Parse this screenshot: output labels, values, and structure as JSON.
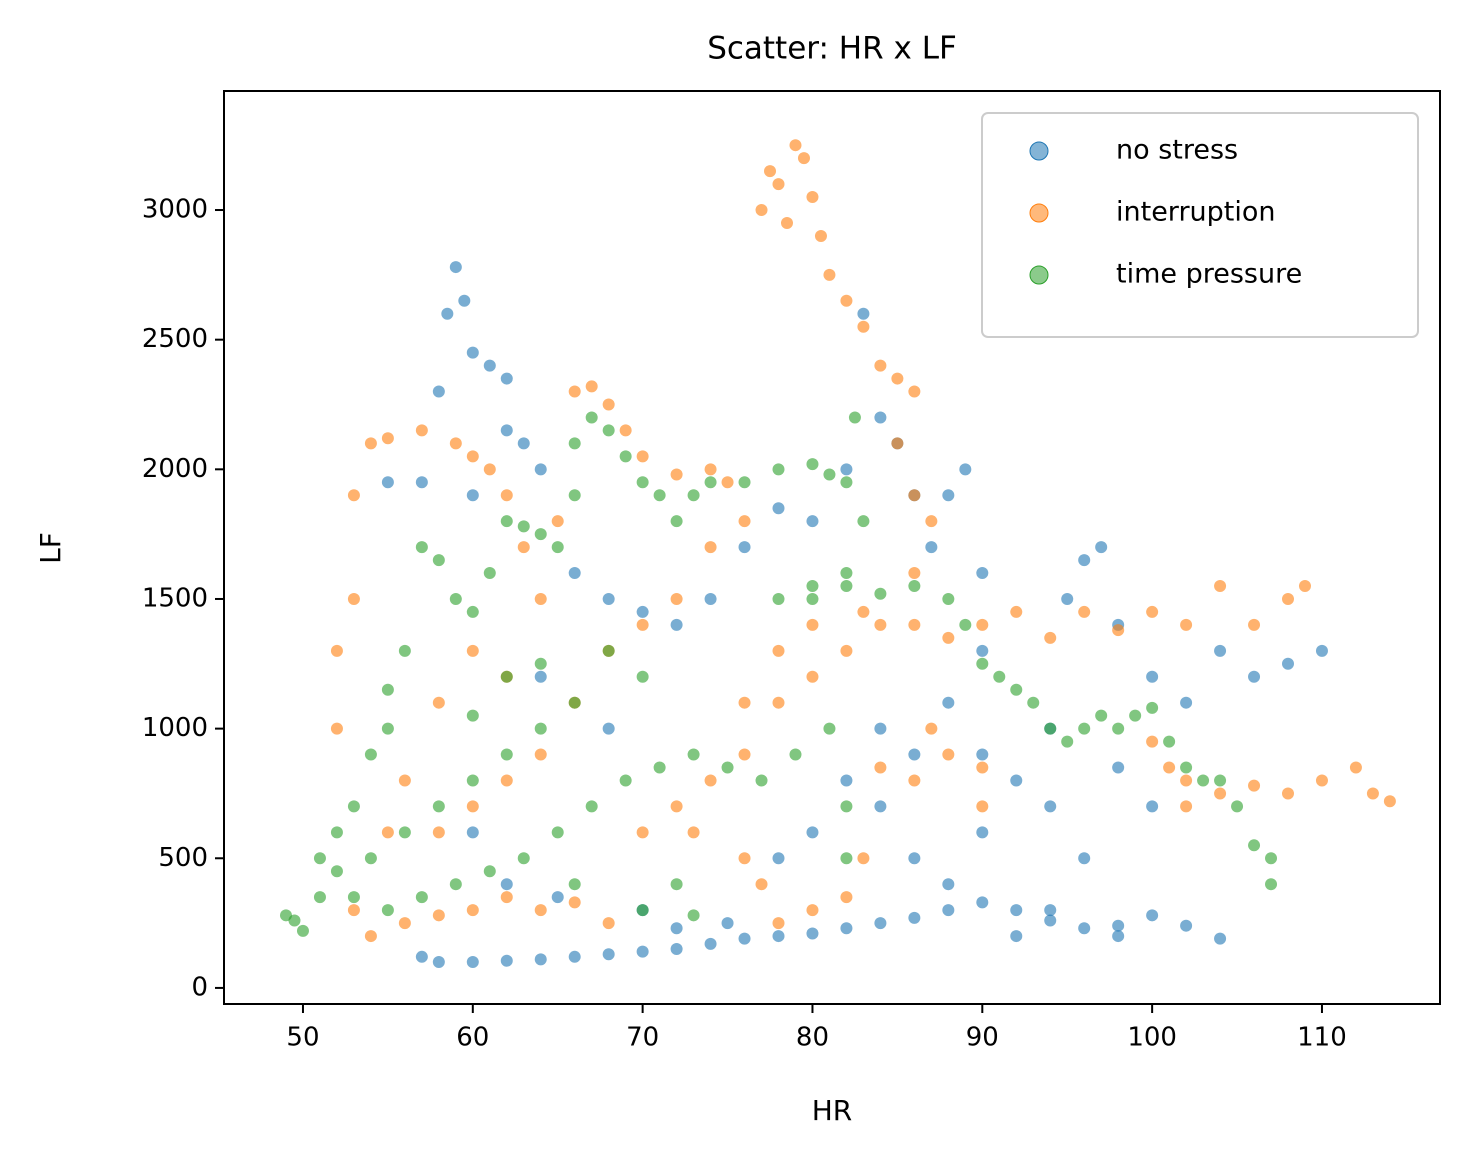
{
  "chart_data": {
    "type": "scatter",
    "title": "Scatter: HR x LF",
    "x_label": "HR",
    "y_label": "LF",
    "xlim": [
      45.35,
      116.95
    ],
    "ylim": [
      -62,
      3459
    ],
    "xticks": [
      50,
      60,
      70,
      80,
      90,
      100,
      110
    ],
    "yticks": [
      0,
      500,
      1000,
      1500,
      2000,
      2500,
      3000
    ],
    "legend": "upper right",
    "grid": false,
    "series": [
      {
        "name": "no stress",
        "color": "#1f77b4",
        "x": [
          57,
          58,
          60,
          62,
          64,
          66,
          68,
          70,
          72,
          74,
          76,
          78,
          80,
          82,
          84,
          86,
          88,
          90,
          92,
          94,
          96,
          98,
          100,
          102,
          104,
          58,
          58.5,
          59,
          59.5,
          60,
          61,
          62,
          63,
          64,
          62,
          60,
          57,
          55,
          66,
          68,
          70,
          72,
          74,
          76,
          78,
          80,
          82,
          83,
          84,
          85,
          86,
          87,
          88,
          89,
          90,
          90,
          88,
          86,
          84,
          86,
          88,
          90,
          92,
          94,
          95,
          96,
          97,
          98,
          100,
          102,
          104,
          106,
          108,
          110,
          100,
          96,
          94,
          98,
          92,
          90,
          94,
          98,
          84,
          82,
          80,
          78,
          75,
          72,
          70,
          65,
          62,
          60,
          64,
          68
        ],
        "values": [
          120,
          100,
          100,
          105,
          110,
          120,
          130,
          140,
          150,
          170,
          190,
          200,
          210,
          230,
          250,
          270,
          300,
          330,
          300,
          260,
          230,
          240,
          280,
          240,
          190,
          2300,
          2600,
          2780,
          2650,
          2450,
          2400,
          2350,
          2100,
          2000,
          2150,
          1900,
          1950,
          1950,
          1600,
          1500,
          1450,
          1400,
          1500,
          1700,
          1850,
          1800,
          2000,
          2600,
          2200,
          2100,
          1900,
          1700,
          1900,
          2000,
          1600,
          1300,
          1100,
          900,
          700,
          500,
          400,
          600,
          800,
          1000,
          1500,
          1650,
          1700,
          1400,
          1200,
          1100,
          1300,
          1200,
          1250,
          1300,
          700,
          500,
          300,
          200,
          200,
          900,
          700,
          850,
          1000,
          800,
          600,
          500,
          250,
          230,
          300,
          350,
          400,
          600,
          1200,
          1000
        ]
      },
      {
        "name": "interruption",
        "color": "#ff7f0e",
        "x": [
          77,
          77.5,
          78,
          78.5,
          79,
          79.5,
          80,
          80.5,
          81,
          82,
          83,
          84,
          85,
          86,
          85,
          86,
          87,
          86,
          84,
          82,
          80,
          78,
          76,
          74,
          76,
          78,
          80,
          83,
          86,
          88,
          90,
          92,
          94,
          96,
          98,
          100,
          102,
          104,
          106,
          108,
          109,
          100,
          101,
          102,
          104,
          106,
          108,
          110,
          112,
          113,
          114,
          102,
          90,
          88,
          86,
          84,
          87,
          90,
          83,
          82,
          80,
          78,
          77,
          76,
          73,
          72,
          70,
          68,
          66,
          64,
          62,
          60,
          58,
          56,
          54,
          53,
          52,
          52,
          53,
          53,
          54,
          55,
          57,
          59,
          60,
          61,
          62,
          63,
          64,
          65,
          66,
          67,
          68,
          69,
          70,
          72,
          74,
          75,
          76,
          74,
          72,
          70,
          68,
          66,
          64,
          62,
          60,
          58,
          56,
          58,
          60,
          62,
          55
        ],
        "values": [
          3000,
          3150,
          3100,
          2950,
          3250,
          3200,
          3050,
          2900,
          2750,
          2650,
          2550,
          2400,
          2350,
          2300,
          2100,
          1900,
          1800,
          1600,
          1400,
          1300,
          1200,
          1100,
          900,
          800,
          1100,
          1300,
          1400,
          1450,
          1400,
          1350,
          1400,
          1450,
          1350,
          1450,
          1380,
          1450,
          1400,
          1550,
          1400,
          1500,
          1550,
          950,
          850,
          800,
          750,
          780,
          750,
          800,
          850,
          750,
          720,
          700,
          850,
          900,
          800,
          850,
          1000,
          700,
          500,
          350,
          300,
          250,
          400,
          500,
          600,
          700,
          600,
          250,
          330,
          300,
          350,
          300,
          280,
          250,
          200,
          300,
          1000,
          1300,
          1500,
          1900,
          2100,
          2120,
          2150,
          2100,
          2050,
          2000,
          1900,
          1700,
          1500,
          1800,
          2300,
          2320,
          2250,
          2150,
          2050,
          1980,
          2000,
          1950,
          1800,
          1700,
          1500,
          1400,
          1300,
          1100,
          900,
          800,
          700,
          600,
          800,
          1100,
          1300,
          1200,
          600
        ]
      },
      {
        "name": "time pressure",
        "color": "#2ca02c",
        "x": [
          49,
          49.5,
          50,
          51,
          51,
          52,
          53,
          54,
          55,
          55,
          56,
          57,
          58,
          59,
          60,
          61,
          62,
          63,
          64,
          65,
          66,
          66,
          67,
          68,
          69,
          70,
          71,
          72,
          73,
          74,
          76,
          78,
          80,
          81,
          82,
          82.5,
          83,
          82,
          80,
          78,
          80,
          82,
          84,
          86,
          88,
          89,
          90,
          91,
          92,
          93,
          94,
          95,
          96,
          97,
          98,
          99,
          100,
          101,
          102,
          103,
          104,
          105,
          106,
          107,
          107,
          52,
          53,
          55,
          57,
          59,
          61,
          63,
          65,
          67,
          69,
          71,
          73,
          75,
          77,
          79,
          81,
          82,
          82,
          70,
          68,
          66,
          64,
          62,
          60,
          58,
          56,
          54,
          66,
          70,
          72,
          73,
          64,
          60,
          62
        ],
        "values": [
          280,
          260,
          220,
          350,
          500,
          600,
          700,
          900,
          1000,
          1150,
          1300,
          1700,
          1650,
          1500,
          1450,
          1600,
          1800,
          1780,
          1750,
          1700,
          1900,
          2100,
          2200,
          2150,
          2050,
          1950,
          1900,
          1800,
          1900,
          1950,
          1950,
          2000,
          2020,
          1980,
          1950,
          2200,
          1800,
          1600,
          1500,
          1500,
          1550,
          1550,
          1520,
          1550,
          1500,
          1400,
          1250,
          1200,
          1150,
          1100,
          1000,
          950,
          1000,
          1050,
          1000,
          1050,
          1080,
          950,
          850,
          800,
          800,
          700,
          550,
          500,
          400,
          450,
          350,
          300,
          350,
          400,
          450,
          500,
          600,
          700,
          800,
          850,
          900,
          850,
          800,
          900,
          1000,
          700,
          500,
          1200,
          1300,
          1100,
          1000,
          900,
          800,
          700,
          600,
          500,
          400,
          300,
          400,
          280,
          1250,
          1050,
          1200
        ]
      }
    ]
  }
}
